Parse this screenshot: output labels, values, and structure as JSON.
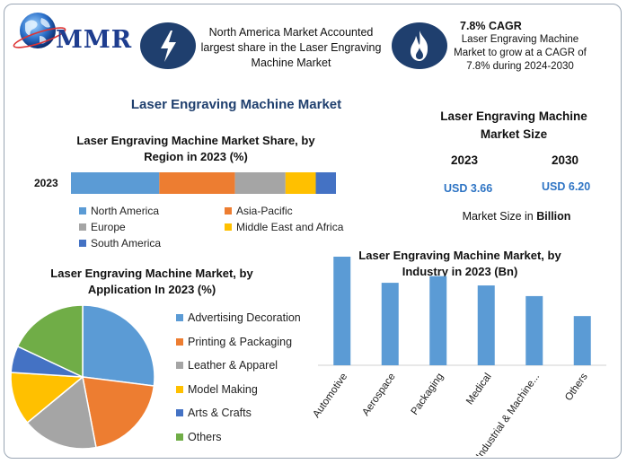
{
  "header": {
    "logo_text": "MMR",
    "callout_share": "North America Market Accounted largest share in the Laser Engraving Machine Market",
    "callout_cagr_head": "7.8% CAGR",
    "callout_cagr_body": "Laser Engraving Machine Market to grow at a CAGR of 7.8% during 2024-2030",
    "icons": [
      "lightning-bolt-icon",
      "flame-icon"
    ]
  },
  "main_title": "Laser Engraving Machine Market",
  "market_size": {
    "title": "Laser Engraving Machine Market Size",
    "years": [
      "2023",
      "2030"
    ],
    "values": [
      "USD 3.66",
      "USD 6.20"
    ],
    "note_prefix": "Market Size in ",
    "note_unit": "Billion"
  },
  "colors": {
    "blue": "#5b9bd5",
    "orange": "#ed7d31",
    "gray": "#a5a5a5",
    "yellow": "#ffc000",
    "dark_blue": "#4472c4",
    "green": "#70ad47",
    "navy": "#1f3f6e"
  },
  "chart_data": [
    {
      "type": "bar",
      "orientation": "horizontal-stacked",
      "title": "Laser Engraving Machine Market Share, by Region in 2023 (%)",
      "categories": [
        "2023"
      ],
      "series": [
        {
          "name": "North America",
          "values": [
            35
          ]
        },
        {
          "name": "Asia-Pacific",
          "values": [
            30
          ]
        },
        {
          "name": "Europe",
          "values": [
            20
          ]
        },
        {
          "name": "Middle East and Africa",
          "values": [
            12
          ]
        },
        {
          "name": "South America",
          "values": [
            8
          ]
        }
      ],
      "xlim": [
        0,
        105
      ],
      "legend": "bottom",
      "grid": false
    },
    {
      "type": "pie",
      "title": "Laser Engraving Machine Market, by Application In 2023 (%)",
      "labels": [
        "Advertising Decoration",
        "Printing & Packaging",
        "Leather & Apparel",
        "Model Making",
        "Arts & Crafts",
        "Others"
      ],
      "values": [
        27,
        20,
        17,
        12,
        6,
        18
      ],
      "legend": "right"
    },
    {
      "type": "bar",
      "title": "Laser Engraving Machine Market, by Industry in 2023 (Bn)",
      "categories": [
        "Automotive",
        "Aerospace",
        "Packaging",
        "Medical",
        "Industrial & Machine...",
        "Others"
      ],
      "values": [
        0.82,
        0.62,
        0.67,
        0.6,
        0.52,
        0.37
      ],
      "ylim": [
        0,
        0.85
      ],
      "grid": false,
      "legend": "none"
    }
  ]
}
